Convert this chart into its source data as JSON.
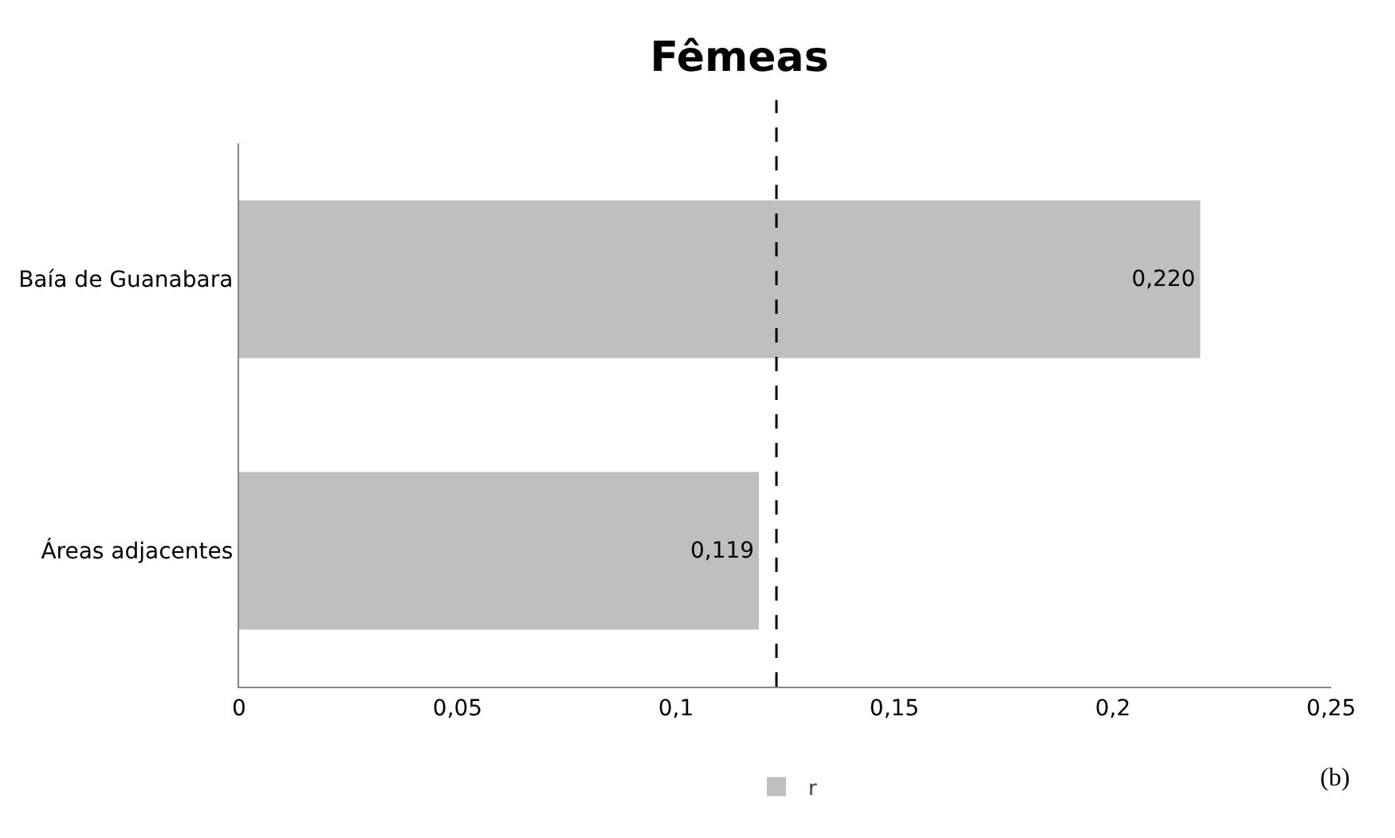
{
  "chart_data": {
    "type": "bar",
    "orientation": "horizontal",
    "title": "Fêmeas",
    "categories": [
      "Baía de Guanabara",
      "Áreas adjacentes"
    ],
    "series": [
      {
        "name": "r",
        "color": "#bfbfbf",
        "values": [
          0.22,
          0.119
        ],
        "value_labels": [
          "0,220",
          "0,119"
        ]
      }
    ],
    "xlim": [
      0,
      0.25
    ],
    "xticks": [
      0,
      {
        "value": 0.05,
        "label": "0,05"
      },
      {
        "value": 0.1,
        "label": "0,1"
      },
      {
        "value": 0.15,
        "label": "0,15"
      },
      {
        "value": 0.2,
        "label": "0,2"
      },
      {
        "value": 0.25,
        "label": "0,25"
      }
    ],
    "ref_lines": [
      {
        "axis": "x",
        "value": 0.123,
        "label": null,
        "color": "#000000",
        "line_style": "dashed"
      }
    ],
    "annotations": [
      "(b)"
    ],
    "legend": "bottom"
  }
}
